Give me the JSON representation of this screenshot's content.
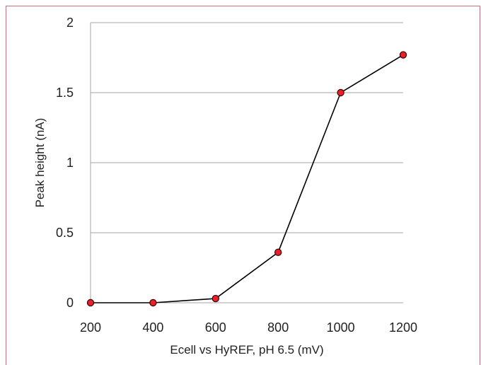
{
  "chart_data": {
    "type": "line",
    "x": [
      200,
      400,
      600,
      800,
      1000,
      1200
    ],
    "series": [
      {
        "values": [
          0,
          0,
          0.03,
          0.36,
          1.5,
          1.77
        ]
      }
    ],
    "xlabel": "Ecell vs HyREF, pH 6.5 (mV)",
    "ylabel": "Peak height (nA)",
    "xlim": [
      200,
      1200
    ],
    "ylim": [
      0,
      2
    ],
    "xticks": [
      200,
      400,
      600,
      800,
      1000,
      1200
    ],
    "yticks": [
      0,
      0.5,
      1,
      1.5,
      2
    ],
    "ytick_labels": [
      "0",
      "0.5",
      "1",
      "1.5",
      "2"
    ],
    "grid": "horizontal",
    "legend": "none",
    "colors": {
      "line": "#000000",
      "marker_fill": "#e8202a",
      "marker_edge": "#3a0000",
      "grid": "#a6a6a6",
      "axis": "#a6a6a6",
      "frame": "#c8707d"
    }
  }
}
